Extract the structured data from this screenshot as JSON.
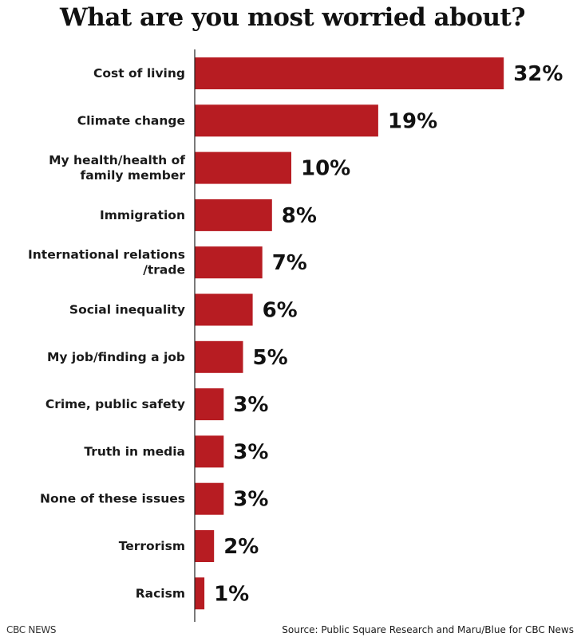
{
  "chart_data": {
    "type": "bar",
    "orientation": "horizontal",
    "title": "What are you most worried about?",
    "categories": [
      [
        "Cost of living"
      ],
      [
        "Climate change"
      ],
      [
        "My health/health of",
        "family member"
      ],
      [
        "Immigration"
      ],
      [
        "International relations",
        "/trade"
      ],
      [
        "Social inequality"
      ],
      [
        "My job/finding a job"
      ],
      [
        "Crime, public safety"
      ],
      [
        "Truth in media"
      ],
      [
        "None of these issues"
      ],
      [
        "Terrorism"
      ],
      [
        "Racism"
      ]
    ],
    "values": [
      32,
      19,
      10,
      8,
      7,
      6,
      5,
      3,
      3,
      3,
      2,
      1
    ],
    "value_labels": [
      "32%",
      "19%",
      "10%",
      "8%",
      "7%",
      "6%",
      "5%",
      "3%",
      "3%",
      "3%",
      "2%",
      "1%"
    ],
    "unit": "%",
    "bar_color": "#b71c22",
    "grid": false
  },
  "footer": {
    "logo": "CBC NEWS",
    "source": "Source: Public Square Research and Maru/Blue for CBC News"
  }
}
